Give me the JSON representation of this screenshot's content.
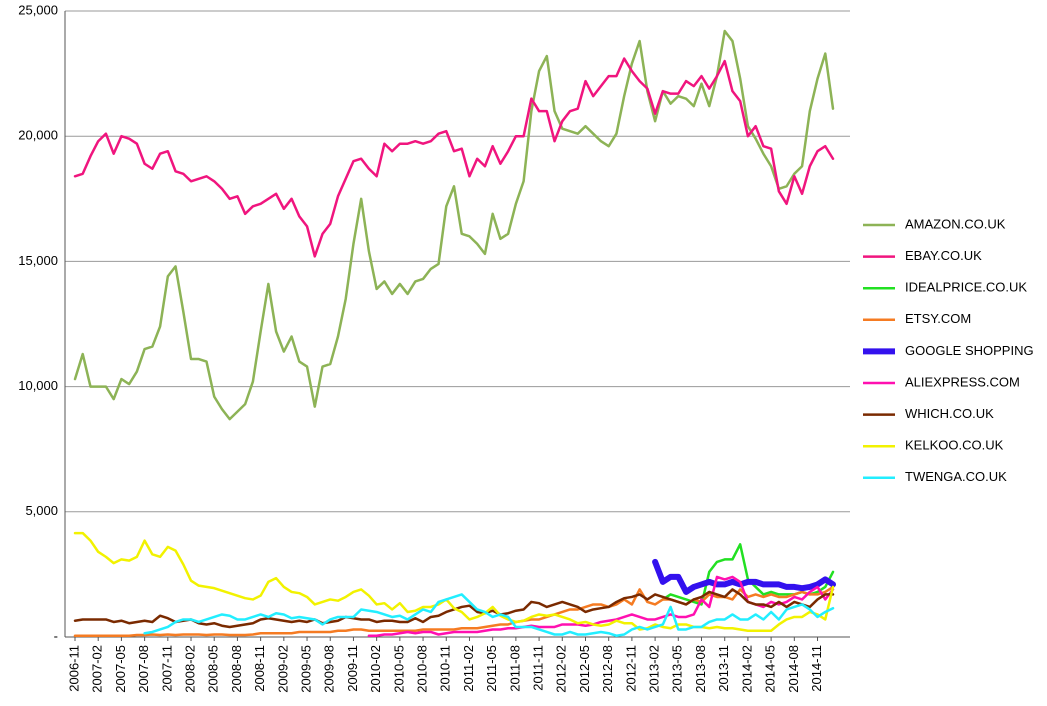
{
  "chart_data": {
    "type": "line",
    "categories": [
      "2006-11",
      null,
      null,
      "2007-02",
      null,
      null,
      "2007-05",
      null,
      null,
      "2007-08",
      null,
      null,
      "2007-11",
      null,
      null,
      "2008-02",
      null,
      null,
      "2008-05",
      null,
      null,
      "2008-08",
      null,
      null,
      "2008-11",
      null,
      null,
      "2009-02",
      null,
      null,
      "2009-05",
      null,
      null,
      "2009-08",
      null,
      null,
      "2009-11",
      null,
      null,
      "2010-02",
      null,
      null,
      "2010-05",
      null,
      null,
      "2010-08",
      null,
      null,
      "2010-11",
      null,
      null,
      "2011-02",
      null,
      null,
      "2011-05",
      null,
      null,
      "2011-08",
      null,
      null,
      "2011-11",
      null,
      null,
      "2012-02",
      null,
      null,
      "2012-05",
      null,
      null,
      "2012-08",
      null,
      null,
      "2012-11",
      null,
      null,
      "2013-02",
      null,
      null,
      "2013-05",
      null,
      null,
      "2013-08",
      null,
      null,
      "2013-11",
      null,
      null,
      "2014-02",
      null,
      null,
      "2014-05",
      null,
      null,
      "2014-08",
      null,
      null,
      "2014-11",
      null,
      null
    ],
    "ylim": [
      0,
      25000
    ],
    "yticks": [
      {
        "value": 0,
        "label": "-"
      },
      {
        "value": 5000,
        "label": "5,000"
      },
      {
        "value": 10000,
        "label": "10,000"
      },
      {
        "value": 15000,
        "label": "15,000"
      },
      {
        "value": 20000,
        "label": "20,000"
      },
      {
        "value": 25000,
        "label": "25,000"
      }
    ],
    "grid": true,
    "legend": "right",
    "series": [
      {
        "name": "AMAZON.CO.UK",
        "color": "#8db356",
        "line_width": 2.5,
        "values": [
          10300,
          11300,
          10000,
          10000,
          10000,
          9500,
          10300,
          10100,
          10600,
          11500,
          11600,
          12400,
          14400,
          14800,
          13000,
          11100,
          11100,
          11000,
          9600,
          9100,
          8700,
          9000,
          9300,
          10200,
          12200,
          14100,
          12200,
          11400,
          12000,
          11000,
          10800,
          9200,
          10800,
          10900,
          12000,
          13500,
          15700,
          17500,
          15400,
          13900,
          14200,
          13700,
          14100,
          13700,
          14200,
          14300,
          14700,
          14900,
          17200,
          18000,
          16100,
          16000,
          15700,
          15300,
          16900,
          15900,
          16100,
          17300,
          18200,
          21000,
          22600,
          23200,
          21000,
          20300,
          20200,
          20100,
          20400,
          20100,
          19800,
          19600,
          20100,
          21600,
          22900,
          23800,
          21800,
          20600,
          21800,
          21300,
          21600,
          21500,
          21200,
          22100,
          21200,
          22400,
          24200,
          23800,
          22300,
          20400,
          19900,
          19300,
          18800,
          17900,
          18000,
          18500,
          18800,
          21000,
          22300,
          23300,
          21100
        ]
      },
      {
        "name": "EBAY.CO.UK",
        "color": "#f0157e",
        "line_width": 2.5,
        "values": [
          18400,
          18500,
          19200,
          19800,
          20100,
          19300,
          20000,
          19900,
          19700,
          18900,
          18700,
          19300,
          19400,
          18600,
          18500,
          18200,
          18300,
          18400,
          18200,
          17900,
          17500,
          17600,
          16900,
          17200,
          17300,
          17500,
          17700,
          17100,
          17500,
          16800,
          16400,
          15200,
          16100,
          16500,
          17600,
          18300,
          19000,
          19100,
          18700,
          18400,
          19700,
          19400,
          19700,
          19700,
          19800,
          19700,
          19800,
          20100,
          20200,
          19400,
          19500,
          18400,
          19100,
          18800,
          19600,
          18900,
          19400,
          20000,
          20000,
          21500,
          21000,
          21000,
          19800,
          20600,
          21000,
          21100,
          22200,
          21600,
          22000,
          22400,
          22400,
          23100,
          22600,
          22200,
          21900,
          20900,
          21800,
          21700,
          21700,
          22200,
          22000,
          22400,
          21900,
          22400,
          23000,
          21800,
          21400,
          20000,
          20400,
          19600,
          19500,
          17800,
          17300,
          18400,
          17700,
          18800,
          19400,
          19600,
          19100
        ]
      },
      {
        "name": "IDEALPRICE.CO.UK",
        "color": "#22e022",
        "line_width": 2.5,
        "values": [
          null,
          null,
          null,
          null,
          null,
          null,
          null,
          null,
          null,
          null,
          null,
          null,
          null,
          null,
          null,
          null,
          null,
          null,
          null,
          null,
          null,
          null,
          null,
          null,
          null,
          null,
          null,
          null,
          null,
          null,
          null,
          null,
          null,
          null,
          null,
          null,
          null,
          null,
          null,
          null,
          null,
          null,
          null,
          null,
          null,
          null,
          null,
          null,
          null,
          null,
          null,
          null,
          null,
          null,
          null,
          null,
          null,
          null,
          null,
          null,
          null,
          null,
          null,
          null,
          null,
          null,
          null,
          null,
          null,
          null,
          null,
          null,
          null,
          null,
          null,
          null,
          1500,
          1700,
          1600,
          1500,
          1400,
          1300,
          2600,
          3000,
          3100,
          3100,
          3700,
          2300,
          2000,
          1700,
          1800,
          1700,
          1700,
          1700,
          1800,
          1700,
          1800,
          2000,
          2600
        ]
      },
      {
        "name": "ETSY.COM",
        "color": "#f57b22",
        "line_width": 2.5,
        "values": [
          50,
          50,
          50,
          50,
          50,
          50,
          50,
          50,
          80,
          80,
          100,
          80,
          100,
          80,
          100,
          100,
          100,
          80,
          100,
          100,
          80,
          80,
          80,
          100,
          150,
          150,
          150,
          150,
          150,
          200,
          200,
          200,
          200,
          200,
          250,
          250,
          300,
          300,
          250,
          250,
          250,
          250,
          250,
          250,
          250,
          300,
          300,
          300,
          300,
          300,
          350,
          350,
          350,
          400,
          450,
          500,
          500,
          600,
          650,
          700,
          700,
          800,
          900,
          1000,
          1100,
          1100,
          1200,
          1300,
          1300,
          1200,
          1300,
          1500,
          1300,
          1900,
          1400,
          1300,
          1500,
          1500,
          1400,
          1300,
          1500,
          1400,
          1700,
          1600,
          1600,
          1500,
          1900,
          1600,
          1700,
          1600,
          1700,
          1600,
          1600,
          1700,
          1800,
          1700,
          1700,
          1800,
          2000
        ]
      },
      {
        "name": "GOOGLE SHOPPING",
        "color": "#3311ee",
        "line_width": 6,
        "values": [
          null,
          null,
          null,
          null,
          null,
          null,
          null,
          null,
          null,
          null,
          null,
          null,
          null,
          null,
          null,
          null,
          null,
          null,
          null,
          null,
          null,
          null,
          null,
          null,
          null,
          null,
          null,
          null,
          null,
          null,
          null,
          null,
          null,
          null,
          null,
          null,
          null,
          null,
          null,
          null,
          null,
          null,
          null,
          null,
          null,
          null,
          null,
          null,
          null,
          null,
          null,
          null,
          null,
          null,
          null,
          null,
          null,
          null,
          null,
          null,
          null,
          null,
          null,
          null,
          null,
          null,
          null,
          null,
          null,
          null,
          null,
          null,
          null,
          null,
          null,
          3000,
          2200,
          2400,
          2400,
          1800,
          2000,
          2100,
          2200,
          2100,
          2100,
          2200,
          2100,
          2200,
          2200,
          2100,
          2100,
          2100,
          2000,
          2000,
          1950,
          2000,
          2100,
          2300,
          2100
        ]
      },
      {
        "name": "ALIEXPRESS.COM",
        "color": "#ff10b0",
        "line_width": 2.5,
        "values": [
          null,
          null,
          null,
          null,
          null,
          null,
          null,
          null,
          null,
          null,
          null,
          null,
          null,
          null,
          null,
          null,
          null,
          null,
          null,
          null,
          null,
          null,
          null,
          null,
          null,
          null,
          null,
          null,
          null,
          null,
          null,
          null,
          null,
          null,
          null,
          null,
          null,
          null,
          50,
          50,
          100,
          100,
          150,
          200,
          150,
          200,
          200,
          100,
          150,
          200,
          200,
          200,
          200,
          250,
          300,
          300,
          350,
          350,
          400,
          450,
          400,
          400,
          400,
          500,
          500,
          500,
          450,
          500,
          600,
          650,
          700,
          800,
          900,
          800,
          700,
          700,
          800,
          900,
          800,
          800,
          900,
          1500,
          1200,
          2400,
          2300,
          2400,
          2200,
          1400,
          1300,
          1200,
          1400,
          1300,
          1400,
          1600,
          1500,
          1800,
          2000,
          1500,
          1900
        ]
      },
      {
        "name": "WHICH.CO.UK",
        "color": "#7a2a00",
        "line_width": 2.5,
        "values": [
          650,
          700,
          700,
          700,
          700,
          600,
          650,
          550,
          600,
          650,
          600,
          850,
          750,
          600,
          650,
          700,
          550,
          500,
          550,
          450,
          400,
          450,
          500,
          550,
          700,
          750,
          700,
          650,
          600,
          650,
          600,
          700,
          550,
          600,
          650,
          800,
          750,
          700,
          700,
          600,
          650,
          650,
          600,
          600,
          750,
          600,
          800,
          850,
          1000,
          1100,
          1200,
          1250,
          1000,
          950,
          1050,
          900,
          950,
          1050,
          1100,
          1400,
          1350,
          1200,
          1300,
          1400,
          1300,
          1200,
          1000,
          1100,
          1150,
          1200,
          1400,
          1550,
          1600,
          1700,
          1500,
          1700,
          1600,
          1500,
          1400,
          1300,
          1500,
          1600,
          1800,
          1700,
          1600,
          1900,
          1700,
          1400,
          1300,
          1300,
          1200,
          1400,
          1200,
          1400,
          1300,
          1200,
          1500,
          1700,
          1700
        ]
      },
      {
        "name": "KELKOO.CO.UK",
        "color": "#f2f200",
        "line_width": 2.5,
        "values": [
          4150,
          4150,
          3850,
          3400,
          3200,
          2950,
          3100,
          3050,
          3200,
          3850,
          3300,
          3200,
          3600,
          3450,
          2900,
          2250,
          2050,
          2000,
          1950,
          1850,
          1750,
          1650,
          1550,
          1500,
          1650,
          2200,
          2350,
          2000,
          1800,
          1750,
          1600,
          1300,
          1400,
          1500,
          1450,
          1600,
          1800,
          1900,
          1650,
          1300,
          1350,
          1100,
          1350,
          1000,
          1050,
          1200,
          1200,
          1300,
          1500,
          1150,
          1000,
          700,
          800,
          950,
          1200,
          850,
          700,
          600,
          650,
          800,
          900,
          850,
          900,
          800,
          700,
          550,
          600,
          500,
          450,
          500,
          650,
          550,
          550,
          300,
          350,
          500,
          400,
          350,
          500,
          500,
          400,
          400,
          350,
          400,
          350,
          350,
          300,
          250,
          250,
          250,
          250,
          500,
          700,
          800,
          800,
          1000,
          900,
          700,
          2000
        ]
      },
      {
        "name": "TWENGA.CO.UK",
        "color": "#22eeff",
        "line_width": 2.5,
        "values": [
          null,
          null,
          null,
          null,
          null,
          null,
          null,
          null,
          null,
          150,
          200,
          300,
          400,
          600,
          700,
          700,
          600,
          700,
          800,
          900,
          850,
          700,
          700,
          800,
          900,
          800,
          950,
          900,
          750,
          800,
          750,
          700,
          500,
          700,
          800,
          800,
          800,
          1100,
          1050,
          1000,
          900,
          800,
          850,
          700,
          900,
          1100,
          1000,
          1400,
          1500,
          1600,
          1700,
          1400,
          1100,
          1000,
          800,
          900,
          800,
          400,
          400,
          400,
          300,
          200,
          100,
          100,
          200,
          100,
          100,
          150,
          200,
          150,
          50,
          100,
          300,
          400,
          300,
          400,
          500,
          1200,
          300,
          300,
          400,
          400,
          600,
          700,
          700,
          900,
          700,
          700,
          900,
          700,
          1000,
          700,
          1100,
          1200,
          1300,
          1100,
          800,
          1000,
          1150
        ]
      }
    ]
  }
}
